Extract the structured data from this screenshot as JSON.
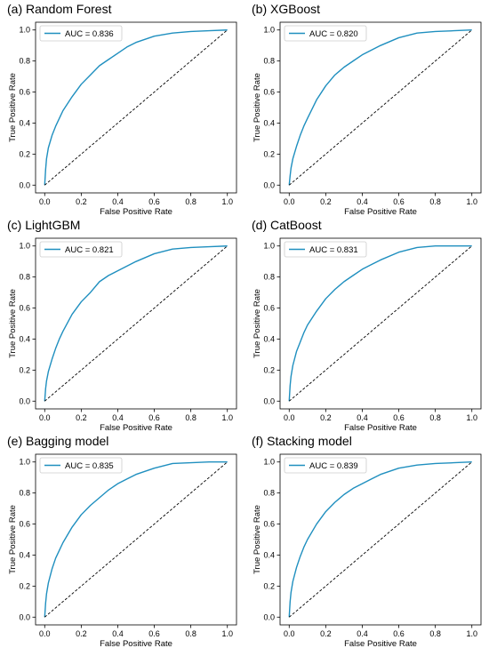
{
  "axes": {
    "xlabel": "False Positive Rate",
    "ylabel": "True Positive Rate"
  },
  "colors": {
    "roc": "#1f8fbf",
    "diagonal": "#000000",
    "frame": "#000000"
  },
  "chart_data": [
    {
      "type": "line",
      "panel_title": "(a) Random Forest",
      "title": "",
      "xlabel": "False Positive Rate",
      "ylabel": "True Positive Rate",
      "xlim": [
        0.0,
        1.0
      ],
      "ylim": [
        0.0,
        1.0
      ],
      "xticks": [
        "0.0",
        "0.2",
        "0.4",
        "0.6",
        "0.8",
        "1.0"
      ],
      "yticks": [
        "0.0",
        "0.2",
        "0.4",
        "0.6",
        "0.8",
        "1.0"
      ],
      "grid": false,
      "legend_position": "top-left",
      "series": [
        {
          "name": "AUC = 0.836",
          "x": [
            0.0,
            0.005,
            0.01,
            0.02,
            0.04,
            0.06,
            0.08,
            0.1,
            0.15,
            0.2,
            0.25,
            0.3,
            0.35,
            0.4,
            0.45,
            0.5,
            0.6,
            0.7,
            0.8,
            0.9,
            1.0
          ],
          "y": [
            0.0,
            0.1,
            0.17,
            0.24,
            0.32,
            0.38,
            0.43,
            0.48,
            0.57,
            0.65,
            0.71,
            0.77,
            0.81,
            0.85,
            0.89,
            0.92,
            0.96,
            0.98,
            0.99,
            0.995,
            1.0
          ]
        },
        {
          "name": "",
          "style": "dashed",
          "x": [
            0.0,
            1.0
          ],
          "y": [
            0.0,
            1.0
          ]
        }
      ]
    },
    {
      "type": "line",
      "panel_title": "(b) XGBoost",
      "title": "",
      "xlabel": "False Positive Rate",
      "ylabel": "True Positive Rate",
      "xlim": [
        0.0,
        1.0
      ],
      "ylim": [
        0.0,
        1.0
      ],
      "xticks": [
        "0.0",
        "0.2",
        "0.4",
        "0.6",
        "0.8",
        "1.0"
      ],
      "yticks": [
        "0.0",
        "0.2",
        "0.4",
        "0.6",
        "0.8",
        "1.0"
      ],
      "grid": false,
      "legend_position": "top-left",
      "series": [
        {
          "name": "AUC = 0.820",
          "x": [
            0.0,
            0.005,
            0.01,
            0.02,
            0.04,
            0.06,
            0.08,
            0.1,
            0.15,
            0.2,
            0.25,
            0.3,
            0.35,
            0.4,
            0.45,
            0.5,
            0.6,
            0.7,
            0.8,
            0.9,
            1.0
          ],
          "y": [
            0.0,
            0.06,
            0.11,
            0.17,
            0.25,
            0.32,
            0.38,
            0.43,
            0.55,
            0.64,
            0.71,
            0.76,
            0.8,
            0.84,
            0.87,
            0.9,
            0.95,
            0.98,
            0.99,
            0.995,
            1.0
          ]
        },
        {
          "name": "",
          "style": "dashed",
          "x": [
            0.0,
            1.0
          ],
          "y": [
            0.0,
            1.0
          ]
        }
      ]
    },
    {
      "type": "line",
      "panel_title": "(c) LightGBM",
      "title": "",
      "xlabel": "False Positive Rate",
      "ylabel": "True Positive Rate",
      "xlim": [
        0.0,
        1.0
      ],
      "ylim": [
        0.0,
        1.0
      ],
      "xticks": [
        "0.0",
        "0.2",
        "0.4",
        "0.6",
        "0.8",
        "1.0"
      ],
      "yticks": [
        "0.0",
        "0.2",
        "0.4",
        "0.6",
        "0.8",
        "1.0"
      ],
      "grid": false,
      "legend_position": "top-left",
      "series": [
        {
          "name": "AUC = 0.821",
          "x": [
            0.0,
            0.005,
            0.01,
            0.02,
            0.04,
            0.06,
            0.08,
            0.1,
            0.15,
            0.2,
            0.25,
            0.3,
            0.35,
            0.4,
            0.45,
            0.5,
            0.6,
            0.7,
            0.8,
            0.9,
            1.0
          ],
          "y": [
            0.0,
            0.08,
            0.13,
            0.19,
            0.27,
            0.34,
            0.4,
            0.45,
            0.56,
            0.64,
            0.7,
            0.77,
            0.81,
            0.84,
            0.87,
            0.9,
            0.95,
            0.98,
            0.99,
            0.995,
            1.0
          ]
        },
        {
          "name": "",
          "style": "dashed",
          "x": [
            0.0,
            1.0
          ],
          "y": [
            0.0,
            1.0
          ]
        }
      ]
    },
    {
      "type": "line",
      "panel_title": "(d) CatBoost",
      "title": "",
      "xlabel": "False Positive Rate",
      "ylabel": "True Positive Rate",
      "xlim": [
        0.0,
        1.0
      ],
      "ylim": [
        0.0,
        1.0
      ],
      "xticks": [
        "0.0",
        "0.2",
        "0.4",
        "0.6",
        "0.8",
        "1.0"
      ],
      "yticks": [
        "0.0",
        "0.2",
        "0.4",
        "0.6",
        "0.8",
        "1.0"
      ],
      "grid": false,
      "legend_position": "top-left",
      "series": [
        {
          "name": "AUC = 0.831",
          "x": [
            0.0,
            0.005,
            0.01,
            0.02,
            0.04,
            0.06,
            0.08,
            0.1,
            0.15,
            0.2,
            0.25,
            0.3,
            0.35,
            0.4,
            0.45,
            0.5,
            0.6,
            0.7,
            0.8,
            0.9,
            1.0
          ],
          "y": [
            0.0,
            0.1,
            0.16,
            0.23,
            0.32,
            0.38,
            0.44,
            0.49,
            0.58,
            0.66,
            0.72,
            0.77,
            0.81,
            0.85,
            0.88,
            0.91,
            0.96,
            0.99,
            1.0,
            1.0,
            1.0
          ]
        },
        {
          "name": "",
          "style": "dashed",
          "x": [
            0.0,
            1.0
          ],
          "y": [
            0.0,
            1.0
          ]
        }
      ]
    },
    {
      "type": "line",
      "panel_title": "(e) Bagging model",
      "title": "",
      "xlabel": "False Positive Rate",
      "ylabel": "True Positive Rate",
      "xlim": [
        0.0,
        1.0
      ],
      "ylim": [
        0.0,
        1.0
      ],
      "xticks": [
        "0.0",
        "0.2",
        "0.4",
        "0.6",
        "0.8",
        "1.0"
      ],
      "yticks": [
        "0.0",
        "0.2",
        "0.4",
        "0.6",
        "0.8",
        "1.0"
      ],
      "grid": false,
      "legend_position": "top-left",
      "series": [
        {
          "name": "AUC = 0.835",
          "x": [
            0.0,
            0.005,
            0.01,
            0.02,
            0.04,
            0.06,
            0.08,
            0.1,
            0.15,
            0.2,
            0.25,
            0.3,
            0.35,
            0.4,
            0.45,
            0.5,
            0.6,
            0.7,
            0.8,
            0.9,
            1.0
          ],
          "y": [
            0.0,
            0.09,
            0.15,
            0.22,
            0.31,
            0.38,
            0.43,
            0.48,
            0.58,
            0.66,
            0.72,
            0.77,
            0.82,
            0.86,
            0.89,
            0.92,
            0.96,
            0.99,
            0.995,
            1.0,
            1.0
          ]
        },
        {
          "name": "",
          "style": "dashed",
          "x": [
            0.0,
            1.0
          ],
          "y": [
            0.0,
            1.0
          ]
        }
      ]
    },
    {
      "type": "line",
      "panel_title": "(f) Stacking model",
      "title": "",
      "xlabel": "False Positive Rate",
      "ylabel": "True Positive Rate",
      "xlim": [
        0.0,
        1.0
      ],
      "ylim": [
        0.0,
        1.0
      ],
      "xticks": [
        "0.0",
        "0.2",
        "0.4",
        "0.6",
        "0.8",
        "1.0"
      ],
      "yticks": [
        "0.0",
        "0.2",
        "0.4",
        "0.6",
        "0.8",
        "1.0"
      ],
      "grid": false,
      "legend_position": "top-left",
      "series": [
        {
          "name": "AUC = 0.839",
          "x": [
            0.0,
            0.005,
            0.01,
            0.02,
            0.04,
            0.06,
            0.08,
            0.1,
            0.15,
            0.2,
            0.25,
            0.3,
            0.35,
            0.4,
            0.45,
            0.5,
            0.6,
            0.7,
            0.8,
            0.9,
            1.0
          ],
          "y": [
            0.0,
            0.1,
            0.16,
            0.23,
            0.32,
            0.39,
            0.45,
            0.5,
            0.6,
            0.68,
            0.74,
            0.79,
            0.83,
            0.86,
            0.89,
            0.92,
            0.96,
            0.98,
            0.99,
            0.995,
            1.0
          ]
        },
        {
          "name": "",
          "style": "dashed",
          "x": [
            0.0,
            1.0
          ],
          "y": [
            0.0,
            1.0
          ]
        }
      ]
    }
  ]
}
